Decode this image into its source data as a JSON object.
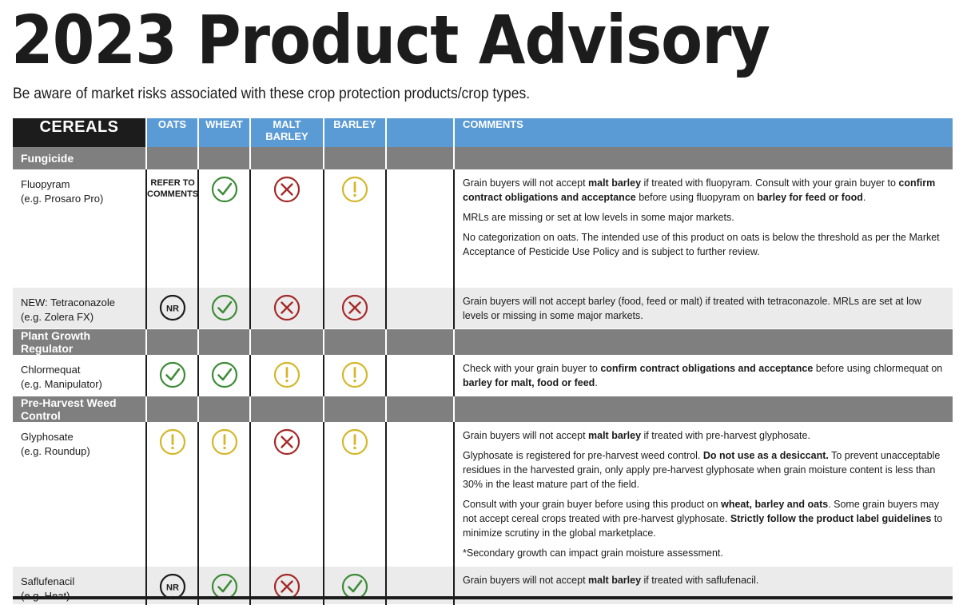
{
  "title": "2023 Product Advisory",
  "subtitle": "Be aware of market risks associated with these crop protection products/crop types.",
  "table": {
    "category": "CEREALS",
    "columns": [
      "OATS",
      "WHEAT",
      "MALT BARLEY",
      "BARLEY",
      ""
    ],
    "comments_header": "COMMENTS",
    "sections": [
      {
        "name": "Fungicide",
        "rows": [
          {
            "product": "Fluopyram",
            "example": "(e.g. Prosaro Pro)",
            "marks": [
              "refer",
              "check",
              "no",
              "caution"
            ],
            "refer_text": [
              "REFER TO",
              "COMMENTS"
            ],
            "comments": [
              [
                {
                  "t": "Grain buyers will not accept "
                },
                {
                  "t": "malt barley",
                  "b": true
                },
                {
                  "t": " if treated with fluopyram. Consult with your grain buyer to "
                },
                {
                  "t": "confirm contract obligations and acceptance",
                  "b": true
                },
                {
                  "t": " before using fluopyram on "
                },
                {
                  "t": "barley for feed or food",
                  "b": true
                },
                {
                  "t": "."
                }
              ],
              [
                {
                  "t": "MRLs are missing or set at low levels in some major markets."
                }
              ],
              [
                {
                  "t": "No categorization on oats. The intended use of this product on oats is below the threshold as per the Market Acceptance of Pesticide Use Policy and is subject to further review."
                }
              ]
            ]
          },
          {
            "product": "NEW: Tetraconazole",
            "example": "(e.g. Zolera FX)",
            "marks": [
              "nr",
              "check",
              "no",
              "no"
            ],
            "comments": [
              [
                {
                  "t": "Grain buyers will not accept barley (food, feed or malt) if treated with tetraconazole. MRLs are set at low levels or missing in some major markets."
                }
              ]
            ]
          }
        ]
      },
      {
        "name": "Plant Growth Regulator",
        "rows": [
          {
            "product": "Chlormequat",
            "example": "(e.g. Manipulator)",
            "marks": [
              "check",
              "check",
              "caution",
              "caution"
            ],
            "comments": [
              [
                {
                  "t": "Check with your grain buyer to "
                },
                {
                  "t": "confirm contract obligations and acceptance",
                  "b": true
                },
                {
                  "t": " before using chlormequat on "
                },
                {
                  "t": "barley for malt, food or feed",
                  "b": true
                },
                {
                  "t": "."
                }
              ]
            ]
          }
        ]
      },
      {
        "name": "Pre-Harvest Weed Control",
        "rows": [
          {
            "product": "Glyphosate",
            "example": "(e.g. Roundup)",
            "marks": [
              "caution",
              "caution",
              "no",
              "caution"
            ],
            "comments": [
              [
                {
                  "t": "Grain buyers will not accept "
                },
                {
                  "t": "malt barley",
                  "b": true
                },
                {
                  "t": " if treated with pre-harvest glyphosate."
                }
              ],
              [
                {
                  "t": "Glyphosate is registered for pre-harvest weed control. "
                },
                {
                  "t": "Do not use as a desiccant.",
                  "b": true
                },
                {
                  "t": " To prevent unacceptable residues in the harvested grain, only apply pre-harvest glyphosate when grain moisture content is less than 30% in the least mature part of the field."
                }
              ],
              [
                {
                  "t": "Consult with your grain buyer before using this product on "
                },
                {
                  "t": "wheat, barley and oats",
                  "b": true
                },
                {
                  "t": ". Some grain buyers may not accept cereal crops treated with pre-harvest glyphosate. "
                },
                {
                  "t": "Strictly follow the product label guidelines",
                  "b": true
                },
                {
                  "t": " to minimize scrutiny in the global marketplace."
                }
              ],
              [
                {
                  "t": "*Secondary growth can impact grain moisture assessment."
                }
              ]
            ]
          },
          {
            "product": "Saflufenacil",
            "example": "(e.g. Heat)",
            "marks": [
              "nr",
              "check",
              "no",
              "check"
            ],
            "comments": [
              [
                {
                  "t": "Grain buyers will not accept "
                },
                {
                  "t": "malt barley",
                  "b": true
                },
                {
                  "t": " if treated with saflufenacil."
                }
              ]
            ]
          }
        ]
      }
    ]
  },
  "icons": {
    "check": {
      "name": "check-circle-icon",
      "color": "#3d8b37"
    },
    "caution": {
      "name": "exclamation-circle-icon",
      "color": "#d4b72a"
    },
    "no": {
      "name": "x-circle-icon",
      "color": "#a52a2a"
    },
    "nr": {
      "name": "nr-circle-icon",
      "color": "#1c1c1c",
      "label": "NR"
    }
  }
}
